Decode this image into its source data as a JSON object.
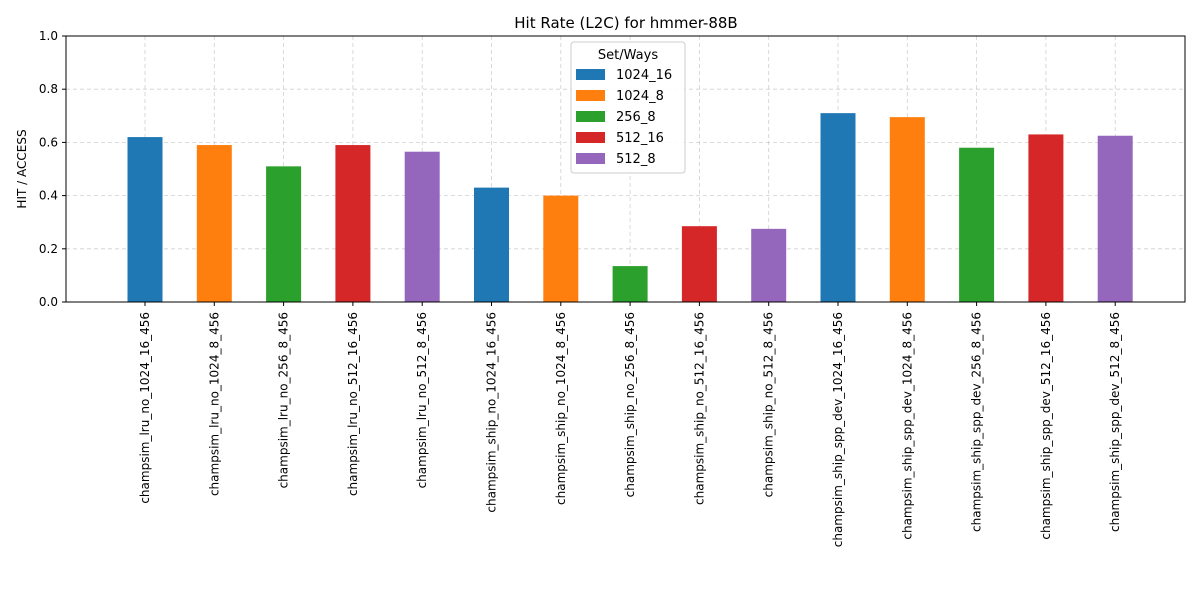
{
  "chart_data": {
    "type": "bar",
    "title": "Hit Rate (L2C) for hmmer-88B",
    "xlabel": "",
    "ylabel": "HIT / ACCESS",
    "ylim": [
      0.0,
      1.0
    ],
    "yticks": [
      "0.0",
      "0.2",
      "0.4",
      "0.6",
      "0.8",
      "1.0"
    ],
    "grid": true,
    "legend": {
      "title": "Set/Ways",
      "placement": "top-center",
      "entries": [
        {
          "name": "1024_16",
          "color": "#1f77b4"
        },
        {
          "name": "1024_8",
          "color": "#ff7f0e"
        },
        {
          "name": "256_8",
          "color": "#2ca02c"
        },
        {
          "name": "512_16",
          "color": "#d62728"
        },
        {
          "name": "512_8",
          "color": "#9467bd"
        }
      ]
    },
    "categories": [
      "champsim_lru_no_1024_16_456",
      "champsim_lru_no_1024_8_456",
      "champsim_lru_no_256_8_456",
      "champsim_lru_no_512_16_456",
      "champsim_lru_no_512_8_456",
      "champsim_ship_no_1024_16_456",
      "champsim_ship_no_1024_8_456",
      "champsim_ship_no_256_8_456",
      "champsim_ship_no_512_16_456",
      "champsim_ship_no_512_8_456",
      "champsim_ship_spp_dev_1024_16_456",
      "champsim_ship_spp_dev_1024_8_456",
      "champsim_ship_spp_dev_256_8_456",
      "champsim_ship_spp_dev_512_16_456",
      "champsim_ship_spp_dev_512_8_456"
    ],
    "values": [
      0.62,
      0.59,
      0.51,
      0.59,
      0.565,
      0.43,
      0.4,
      0.135,
      0.285,
      0.275,
      0.71,
      0.695,
      0.58,
      0.63,
      0.625
    ],
    "bar_groups": [
      "1024_16",
      "1024_8",
      "256_8",
      "512_16",
      "512_8",
      "1024_16",
      "1024_8",
      "256_8",
      "512_16",
      "512_8",
      "1024_16",
      "1024_8",
      "256_8",
      "512_16",
      "512_8"
    ]
  }
}
